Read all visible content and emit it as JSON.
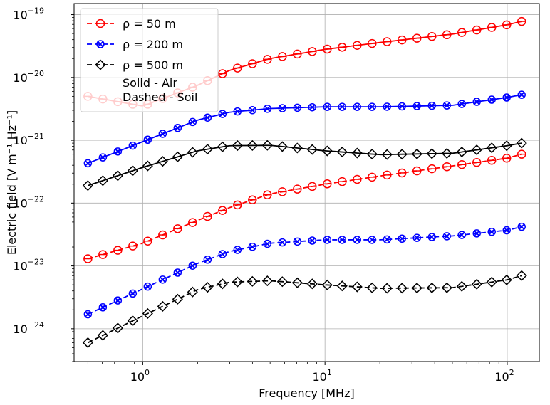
{
  "chart_data": {
    "type": "line",
    "title": "",
    "xlabel": "Frequency [MHz]",
    "ylabel": "Electric field [V m⁻¹ Hz⁻¹]",
    "xscale": "log",
    "yscale": "log",
    "xlim": [
      0.42,
      150
    ],
    "ylim": [
      3e-25,
      1.5e-19
    ],
    "x_ticks": [
      {
        "value": 1,
        "base": "10",
        "exp": "0"
      },
      {
        "value": 10,
        "base": "10",
        "exp": "1"
      },
      {
        "value": 100,
        "base": "10",
        "exp": "2"
      }
    ],
    "y_ticks": [
      {
        "value": 1e-24,
        "base": "10",
        "exp": "−24"
      },
      {
        "value": 1e-23,
        "base": "10",
        "exp": "−23"
      },
      {
        "value": 1e-22,
        "base": "10",
        "exp": "−22"
      },
      {
        "value": 1e-21,
        "base": "10",
        "exp": "−21"
      },
      {
        "value": 1e-20,
        "base": "10",
        "exp": "−20"
      },
      {
        "value": 1e-19,
        "base": "10",
        "exp": "−19"
      }
    ],
    "grid": true,
    "legend_position": "top-left",
    "legend": [
      {
        "label": "ρ = 50 m",
        "color": "#ff0000",
        "marker": "circle"
      },
      {
        "label": "ρ = 200 m",
        "color": "#0000ff",
        "marker": "x"
      },
      {
        "label": "ρ = 500 m",
        "color": "#000000",
        "marker": "diamond"
      }
    ],
    "legend_notes": [
      "Solid - Air",
      "Dashed - Soil"
    ],
    "series": [
      {
        "rho": "50 m",
        "medium": "Air",
        "style": "solid",
        "color": "#ff0000",
        "marker": "circle",
        "x": [
          0.5,
          1,
          2,
          3,
          5,
          10,
          20,
          50,
          100,
          120
        ],
        "y": [
          5e-21,
          3.5e-21,
          7.5e-21,
          1.3e-20,
          2e-20,
          2.8e-20,
          3.6e-20,
          4.9e-20,
          6.9e-20,
          7.8e-20
        ]
      },
      {
        "rho": "200 m",
        "medium": "Air",
        "style": "solid",
        "color": "#0000ff",
        "marker": "x",
        "x": [
          0.5,
          1,
          2,
          3,
          5,
          10,
          20,
          50,
          100,
          120
        ],
        "y": [
          4.3e-22,
          9.5e-22,
          2.1e-21,
          2.8e-21,
          3.2e-21,
          3.4e-21,
          3.4e-21,
          3.6e-21,
          4.8e-21,
          5.3e-21
        ]
      },
      {
        "rho": "500 m",
        "medium": "Air",
        "style": "solid",
        "color": "#000000",
        "marker": "diamond",
        "x": [
          0.5,
          1,
          2,
          3,
          5,
          10,
          20,
          50,
          100,
          120
        ],
        "y": [
          1.9e-22,
          3.7e-22,
          6.8e-22,
          8.2e-22,
          8.3e-22,
          6.8e-22,
          5.9e-22,
          6.2e-22,
          8.2e-22,
          9e-22
        ]
      },
      {
        "rho": "50 m",
        "medium": "Soil",
        "style": "dashed",
        "color": "#ff0000",
        "marker": "circle",
        "x": [
          0.5,
          1,
          2,
          3,
          5,
          10,
          20,
          50,
          100,
          120
        ],
        "y": [
          1.3e-23,
          2.3e-23,
          5.3e-23,
          8.5e-23,
          1.4e-22,
          2e-22,
          2.7e-22,
          3.9e-22,
          5.2e-22,
          6e-22
        ]
      },
      {
        "rho": "200 m",
        "medium": "Soil",
        "style": "dashed",
        "color": "#0000ff",
        "marker": "x",
        "x": [
          0.5,
          1,
          2,
          3,
          5,
          10,
          20,
          50,
          100,
          120
        ],
        "y": [
          1.7e-24,
          4.3e-24,
          1.1e-23,
          1.7e-23,
          2.3e-23,
          2.6e-23,
          2.6e-23,
          3e-23,
          3.7e-23,
          4.2e-23
        ]
      },
      {
        "rho": "500 m",
        "medium": "Soil",
        "style": "dashed",
        "color": "#000000",
        "marker": "diamond",
        "x": [
          0.5,
          1,
          2,
          3,
          5,
          10,
          20,
          50,
          100,
          120
        ],
        "y": [
          6e-25,
          1.6e-24,
          4.2e-24,
          5.5e-24,
          5.8e-24,
          5e-24,
          4.4e-24,
          4.5e-24,
          6e-24,
          7e-24
        ]
      }
    ]
  }
}
